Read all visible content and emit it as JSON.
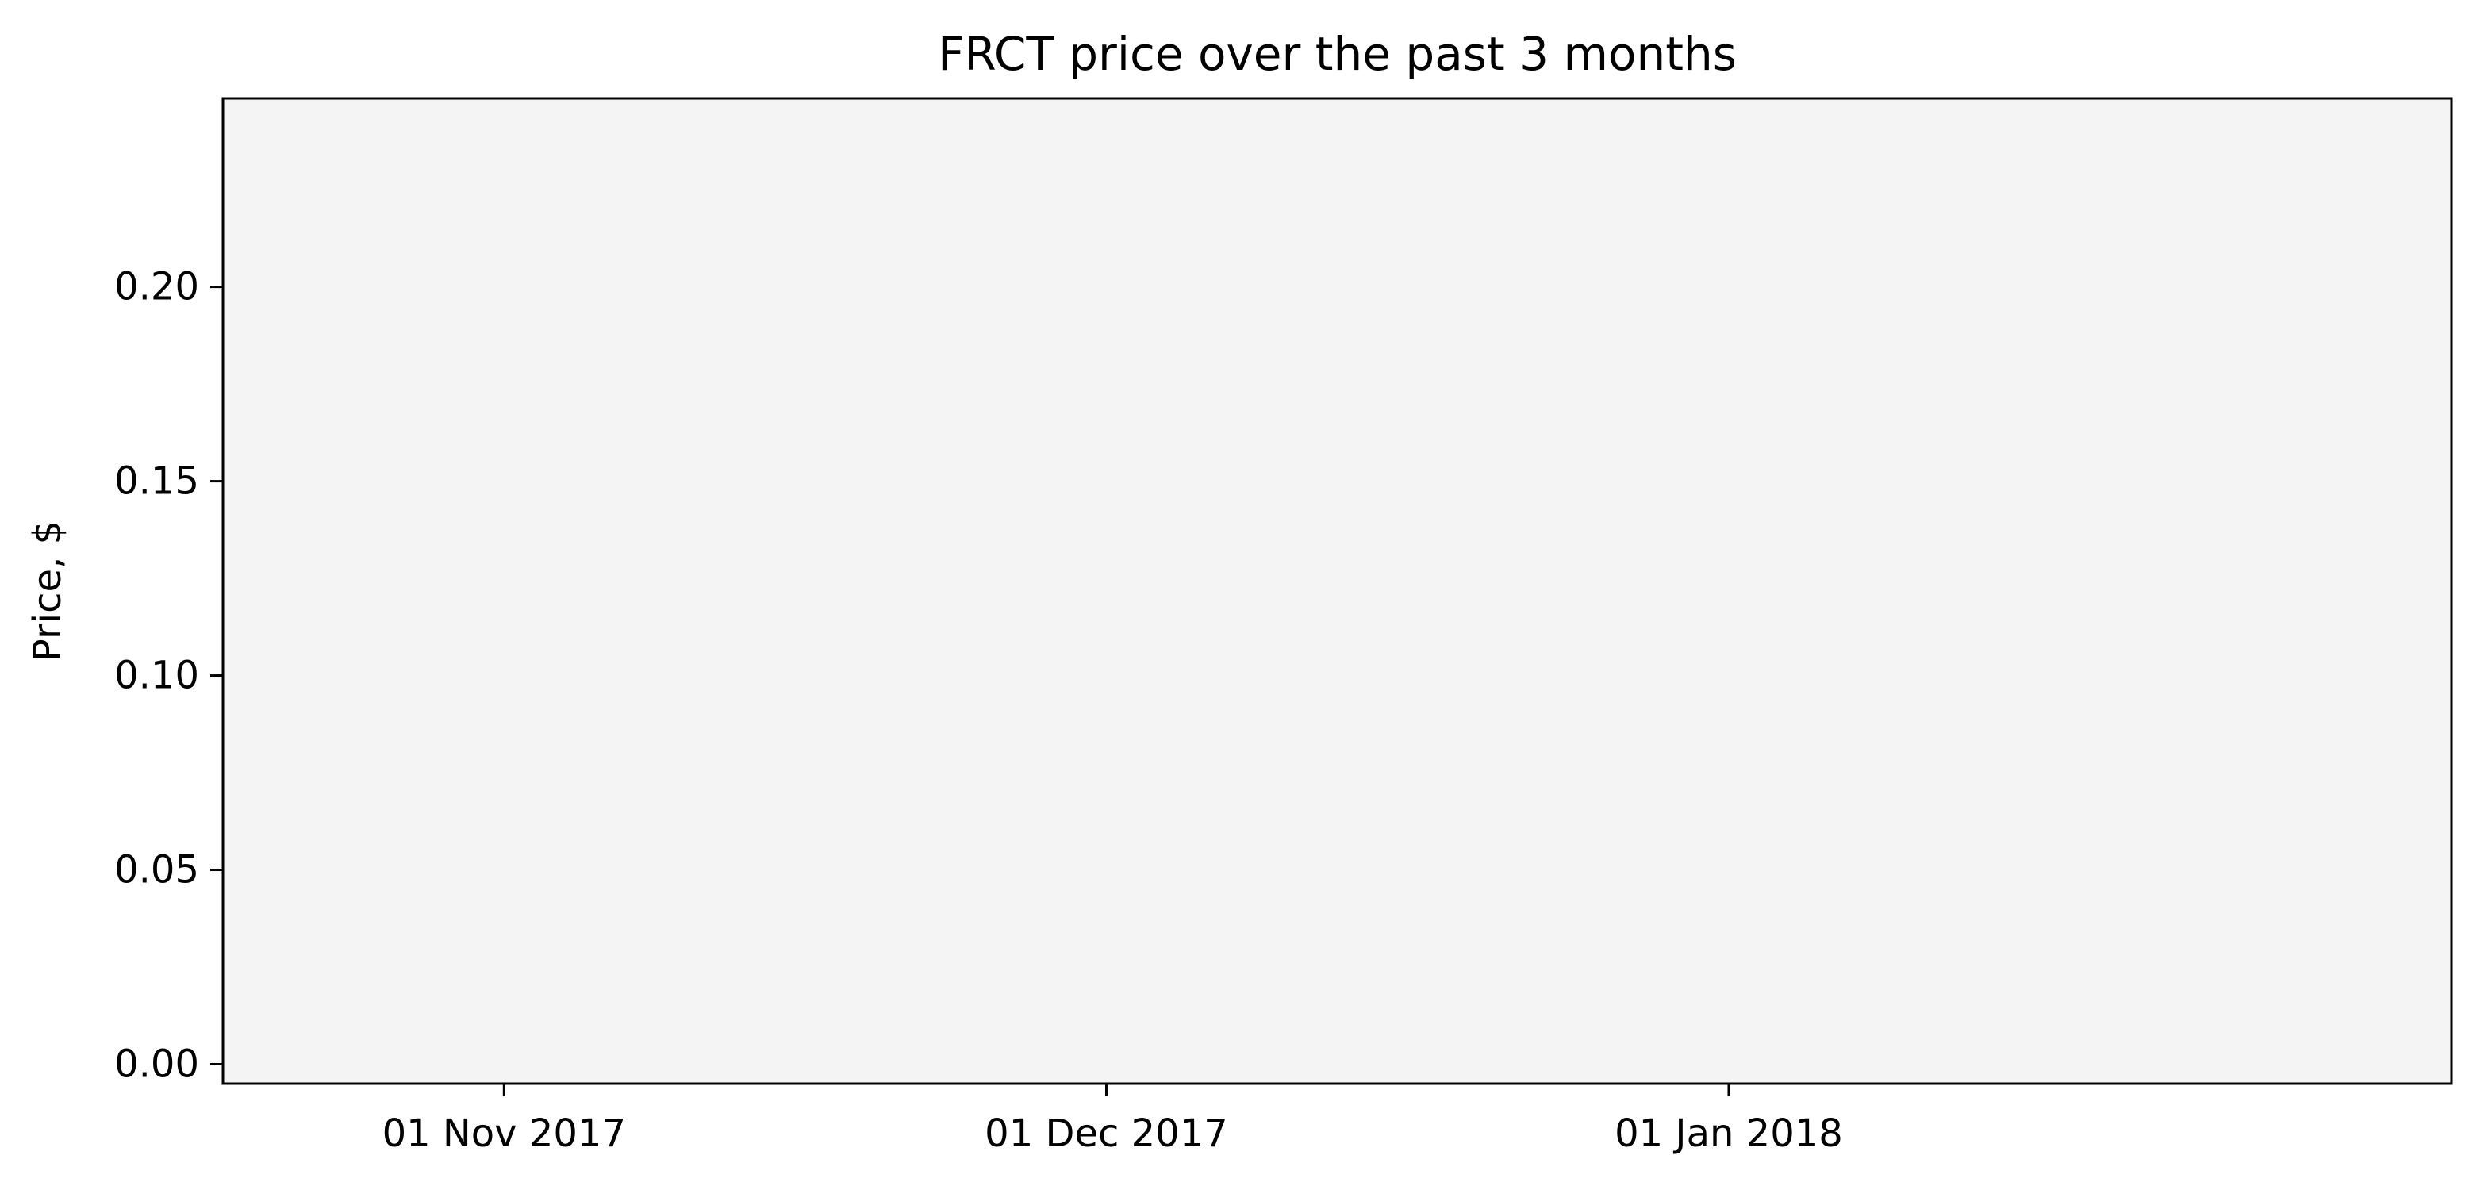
{
  "chart_data": {
    "type": "line",
    "title": "FRCT price over the past 3 months",
    "xlabel": "",
    "ylabel": "Price, $",
    "x_type": "date",
    "xlim": [
      "2017-10-18",
      "2018-02-06"
    ],
    "ylim": [
      -0.005,
      0.2485
    ],
    "x_ticks": [
      {
        "value": "2017-11-01",
        "label": "01 Nov 2017"
      },
      {
        "value": "2017-12-01",
        "label": "01 Dec 2017"
      },
      {
        "value": "2018-01-01",
        "label": "01 Jan 2018"
      }
    ],
    "y_ticks": [
      {
        "value": 0.0,
        "label": "0.00"
      },
      {
        "value": 0.05,
        "label": "0.05"
      },
      {
        "value": 0.1,
        "label": "0.10"
      },
      {
        "value": 0.15,
        "label": "0.15"
      },
      {
        "value": 0.2,
        "label": "0.20"
      }
    ],
    "series": [],
    "grid": false,
    "legend": "none",
    "plot_background": "#f4f4f4",
    "figure_background": "#ffffff",
    "axis_color": "#000000"
  }
}
